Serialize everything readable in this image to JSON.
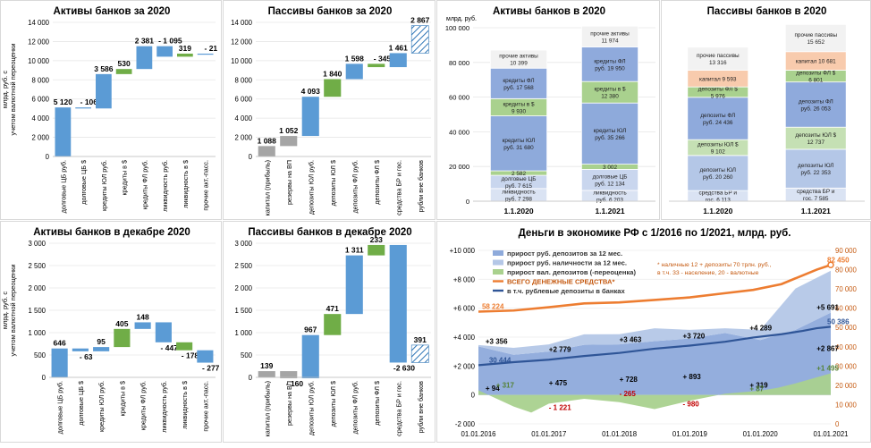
{
  "chart_data": [
    {
      "id": "p1",
      "type": "waterfall",
      "title": "Активы банков за 2020",
      "ylabel": "млрд. руб. с учетом валютной переоценки",
      "ylim": [
        0,
        14000
      ],
      "ticks": [
        0,
        2000,
        4000,
        6000,
        8000,
        10000,
        12000,
        14000
      ],
      "tick_labels": [
        "0",
        "2 000",
        "4 000",
        "6 000",
        "8 000",
        "10 000",
        "12 000",
        "14 000"
      ],
      "categories": [
        "долговые ЦБ руб.",
        "долговые ЦБ $",
        "кредиты ЮЛ руб.",
        "кредиты в $",
        "кредиты ФЛ руб.",
        "ликвидность руб.",
        "ликвидность в $",
        "прочие акт.-пасс."
      ],
      "values": [
        5120,
        -106,
        3586,
        530,
        2381,
        -1095,
        319,
        -21
      ],
      "labels": [
        "5 120",
        "- 106",
        "3 586",
        "530",
        "2 381",
        "- 1 095",
        "319",
        "- 21"
      ]
    },
    {
      "id": "p2",
      "type": "waterfall",
      "title": "Пассивы банков за 2020",
      "ylim": [
        0,
        14000
      ],
      "ticks": [
        0,
        2000,
        4000,
        6000,
        8000,
        10000,
        12000,
        14000
      ],
      "tick_labels": [
        "0",
        "2 000",
        "4 000",
        "6 000",
        "8 000",
        "10 000",
        "12 000",
        "14 000"
      ],
      "categories": [
        "капитал (прибыль)",
        "резервы на ВП",
        "депозиты ЮЛ руб.",
        "депозиты ЮЛ $",
        "депозиты ФЛ руб.",
        "депозиты ФЛ $",
        "средства БР и гос.",
        "рубли вне банков"
      ],
      "values": [
        1088,
        1052,
        4093,
        1840,
        1598,
        -345,
        1461,
        2867
      ],
      "labels": [
        "1 088",
        "1 052",
        "4 093",
        "1 840",
        "1 598",
        "- 345",
        "1 461",
        "2 867"
      ]
    },
    {
      "id": "p3",
      "type": "stacked_bar",
      "title": "Активы банков в 2020",
      "ylabel": "млрд. руб.",
      "ylim": [
        0,
        100000
      ],
      "ticks": [
        0,
        20000,
        40000,
        60000,
        80000,
        100000
      ],
      "tick_labels": [
        "0",
        "20 000",
        "40 000",
        "60 000",
        "80 000",
        "100 000"
      ],
      "categories": [
        "1.1.2020",
        "1.1.2021"
      ],
      "series": [
        {
          "name": "ликвидность",
          "values": [
            7298,
            6203
          ],
          "labels": [
            "ликвидность\nруб. 7 298",
            "ликвидность\nруб. 6 203"
          ]
        },
        {
          "name": "долговые ЦБ руб.",
          "values": [
            7615,
            12134
          ],
          "labels": [
            "долговые ЦБ\nруб. 7 615",
            "долговые ЦБ\nруб. 12 134"
          ]
        },
        {
          "name": "долговые ЦБ $",
          "values": [
            2582,
            3002
          ],
          "labels": [
            "2 582",
            "3 002"
          ]
        },
        {
          "name": "кредиты ЮЛ руб.",
          "values": [
            31680,
            35266
          ],
          "labels": [
            "кредиты ЮЛ\nруб. 31 680",
            "кредиты ЮЛ\nруб. 35 266"
          ]
        },
        {
          "name": "кредиты в $",
          "values": [
            9930,
            12380
          ],
          "labels": [
            "кредиты в $\n9 930",
            "кредиты в $\n12 380"
          ]
        },
        {
          "name": "кредиты ФЛ руб.",
          "values": [
            17568,
            19950
          ],
          "labels": [
            "кредиты ФЛ\nруб. 17 568",
            "кредиты ФЛ\nруб. 19 950"
          ]
        },
        {
          "name": "прочие активы",
          "values": [
            10399,
            11974
          ],
          "labels": [
            "прочие активы\n10 399",
            "прочие активы\n11 974"
          ]
        }
      ]
    },
    {
      "id": "p4",
      "type": "stacked_bar",
      "title": "Пассивы банков в 2020",
      "ylim": [
        0,
        100000
      ],
      "categories": [
        "1.1.2020",
        "1.1.2021"
      ],
      "series": [
        {
          "name": "средства БР и гос.",
          "values": [
            6113,
            7585
          ],
          "labels": [
            "средства БР и\nгос. 6 113",
            "средства БР и\nгос. 7 585"
          ]
        },
        {
          "name": "депозиты ЮЛ руб.",
          "values": [
            20260,
            22353
          ],
          "labels": [
            "депозиты ЮЛ\nруб. 20 260",
            "депозиты ЮЛ\nруб. 22 353"
          ]
        },
        {
          "name": "депозиты ЮЛ $",
          "values": [
            9102,
            12737
          ],
          "labels": [
            "депозиты ЮЛ $\n9 102",
            "депозиты ЮЛ $\n12 737"
          ]
        },
        {
          "name": "депозиты ФЛ руб.",
          "values": [
            24436,
            26053
          ],
          "labels": [
            "депозиты ФЛ\nруб. 24 436",
            "депозиты ФЛ\nруб. 26 053"
          ]
        },
        {
          "name": "депозиты ФЛ $",
          "values": [
            5976,
            6801
          ],
          "labels": [
            "депозиты ФЛ $\n5 976",
            "депозиты ФЛ $\n6 801"
          ]
        },
        {
          "name": "капитал",
          "values": [
            9593,
            10681
          ],
          "labels": [
            "капитал 9 593",
            "капитал 10 681"
          ]
        },
        {
          "name": "прочие пассивы",
          "values": [
            13316,
            15652
          ],
          "labels": [
            "прочие пассивы\n13 316",
            "прочие пассивы\n15 652"
          ]
        }
      ]
    },
    {
      "id": "p5",
      "type": "waterfall",
      "title": "Активы банков в декабре 2020",
      "ylabel": "млрд. руб. с учетом валютной переоценки",
      "ylim": [
        0,
        3000
      ],
      "ticks": [
        0,
        500,
        1000,
        1500,
        2000,
        2500,
        3000
      ],
      "tick_labels": [
        "0",
        "500",
        "1 000",
        "1 500",
        "2 000",
        "2 500",
        "3 000"
      ],
      "categories": [
        "долговые ЦБ руб.",
        "долговые ЦБ $",
        "кредиты ЮЛ руб.",
        "кредиты в $",
        "кредиты ФЛ руб.",
        "ликвидность руб.",
        "ликвидность в $",
        "прочие акт.-пасс."
      ],
      "values": [
        646,
        -63,
        95,
        405,
        148,
        -447,
        -178,
        -277
      ],
      "labels": [
        "646",
        "- 63",
        "95",
        "405",
        "148",
        "- 447",
        "- 178",
        "- 277"
      ]
    },
    {
      "id": "p6",
      "type": "waterfall",
      "title": "Пассивы банков в декабре 2020",
      "ylim": [
        0,
        3000
      ],
      "ticks": [
        0,
        500,
        1000,
        1500,
        2000,
        2500,
        3000
      ],
      "tick_labels": [
        "0",
        "500",
        "1 000",
        "1 500",
        "2 000",
        "2 500",
        "3 000"
      ],
      "categories": [
        "капитал (прибыль)",
        "резервы на ВП",
        "депозиты ЮЛ руб.",
        "депозиты ЮЛ $",
        "депозиты ФЛ руб.",
        "депозиты ФЛ $",
        "средства БР и гос.",
        "рубли вне банков"
      ],
      "values": [
        139,
        -160,
        967,
        471,
        1311,
        233,
        -2630,
        391
      ],
      "labels": [
        "139",
        "- 160",
        "967",
        "471",
        "1 311",
        "233",
        "-2 630",
        "391"
      ]
    },
    {
      "id": "p7",
      "type": "area_line",
      "title": "Деньги в экономике РФ с 1/2016 по 1/2021, млрд. руб.",
      "left_ylim": [
        -2000,
        10000
      ],
      "left_ticks": [
        "-2 000",
        "0",
        "+2 000",
        "+4 000",
        "+6 000",
        "+8 000",
        "+10 000"
      ],
      "right_ylim": [
        0,
        90000
      ],
      "right_ticks": [
        "0",
        "10 000",
        "20 000",
        "30 000",
        "40 000",
        "50 000",
        "60 000",
        "70 000",
        "80 000",
        "90 000"
      ],
      "x_ticks": [
        "01.01.2016",
        "01.01.2017",
        "01.01.2018",
        "01.01.2019",
        "01.01.2020",
        "01.01.2021"
      ],
      "legend": [
        {
          "name": "прирост руб. депозитов за 12 мес.",
          "color": "#8eaadb"
        },
        {
          "name": "прирост руб. наличности за 12 мес.",
          "color": "#b4c7e7"
        },
        {
          "name": "прирост вал. депозитов (-переоценка)",
          "color": "#a9d18e"
        },
        {
          "name": "ВСЕГО ДЕНЕЖНЫЕ СРЕДСТВА*",
          "color": "#ed7d31"
        },
        {
          "name": "в т.ч. рублевые депозиты в банках",
          "color": "#2f5597"
        }
      ],
      "note": "* наличные 12 + депозиты 70 трлн. руб.,\nв т.ч. 33 - население, 20 - валютные",
      "series": {
        "total_money": {
          "x": [
            0,
            0.1,
            0.2,
            0.3,
            0.4,
            0.5,
            0.6,
            0.7,
            0.78,
            0.86,
            0.92,
            0.96,
            1
          ],
          "values": [
            58224,
            58800,
            60500,
            62500,
            63000,
            64300,
            65600,
            67800,
            69500,
            72500,
            77000,
            80000,
            82450
          ]
        },
        "rub_deposits": {
          "x": [
            0,
            0.1,
            0.2,
            0.3,
            0.4,
            0.5,
            0.6,
            0.7,
            0.78,
            0.86,
            0.92,
            0.96,
            1
          ],
          "values": [
            30444,
            32000,
            33300,
            35200,
            36800,
            39000,
            40600,
            42600,
            44800,
            46500,
            48200,
            49600,
            50386
          ]
        },
        "rub_deposit_growth": {
          "x": [
            0,
            0.1,
            0.2,
            0.3,
            0.4,
            0.5,
            0.6,
            0.7,
            0.8,
            0.9,
            1
          ],
          "values": [
            3356,
            2779,
            3000,
            3463,
            3500,
            3720,
            3900,
            4289,
            3800,
            4500,
            5691
          ]
        },
        "cash_growth": {
          "x": [
            0,
            0.1,
            0.2,
            0.3,
            0.4,
            0.5,
            0.6,
            0.7,
            0.8,
            0.9,
            1
          ],
          "values": [
            94,
            475,
            500,
            728,
            700,
            893,
            600,
            319,
            700,
            2867,
            2900
          ]
        },
        "fx_deposit_growth": {
          "x": [
            0,
            0.1,
            0.15,
            0.2,
            0.3,
            0.4,
            0.5,
            0.6,
            0.7,
            0.8,
            0.85,
            0.9,
            1
          ],
          "values": [
            317,
            -800,
            -1221,
            -600,
            -265,
            -500,
            -980,
            -400,
            87,
            300,
            500,
            800,
            1495
          ]
        }
      },
      "labels": [
        {
          "text": "82 450",
          "series": "right",
          "x": 0.99,
          "y": 82450,
          "color": "#ed7d31"
        },
        {
          "text": "58 224",
          "series": "right",
          "x": 0.01,
          "y": 58224,
          "color": "#ed7d31"
        },
        {
          "text": "50 386",
          "series": "right",
          "x": 0.99,
          "y": 50386,
          "color": "#2f5597"
        },
        {
          "text": "30 444",
          "series": "right",
          "x": 0.03,
          "y": 30444,
          "color": "#2f5597"
        },
        {
          "text": "+3 356",
          "series": "left",
          "x": 0.02,
          "y": 3356,
          "color": "#000"
        },
        {
          "text": "+2 779",
          "series": "left",
          "x": 0.2,
          "y": 2779,
          "color": "#000"
        },
        {
          "text": "+3 463",
          "series": "left",
          "x": 0.4,
          "y": 3463,
          "color": "#000"
        },
        {
          "text": "+3 720",
          "series": "left",
          "x": 0.58,
          "y": 3720,
          "color": "#000"
        },
        {
          "text": "+4 289",
          "series": "left",
          "x": 0.77,
          "y": 4289,
          "color": "#000"
        },
        {
          "text": "+5 691",
          "series": "left",
          "x": 0.96,
          "y": 5691,
          "color": "#000"
        },
        {
          "text": "+ 94",
          "series": "left",
          "x": 0.02,
          "y": 94,
          "color": "#000"
        },
        {
          "text": "+ 475",
          "series": "left",
          "x": 0.2,
          "y": 475,
          "color": "#000"
        },
        {
          "text": "+ 728",
          "series": "left",
          "x": 0.4,
          "y": 728,
          "color": "#000"
        },
        {
          "text": "+ 893",
          "series": "left",
          "x": 0.58,
          "y": 893,
          "color": "#000"
        },
        {
          "text": "+ 319",
          "series": "left",
          "x": 0.77,
          "y": 319,
          "color": "#000"
        },
        {
          "text": "+2 867",
          "series": "left",
          "x": 0.96,
          "y": 2867,
          "color": "#000"
        },
        {
          "text": "+ 317",
          "series": "left",
          "x": 0.05,
          "y": 317,
          "color": "#548235"
        },
        {
          "text": "- 1 221",
          "series": "left",
          "x": 0.2,
          "y": -1221,
          "color": "#c00000"
        },
        {
          "text": "- 265",
          "series": "left",
          "x": 0.4,
          "y": -265,
          "color": "#c00000"
        },
        {
          "text": "- 980",
          "series": "left",
          "x": 0.58,
          "y": -980,
          "color": "#c00000"
        },
        {
          "text": "+ 87",
          "series": "left",
          "x": 0.77,
          "y": 87,
          "color": "#548235"
        },
        {
          "text": "+1 495",
          "series": "left",
          "x": 0.96,
          "y": 1495,
          "color": "#548235"
        }
      ]
    }
  ]
}
